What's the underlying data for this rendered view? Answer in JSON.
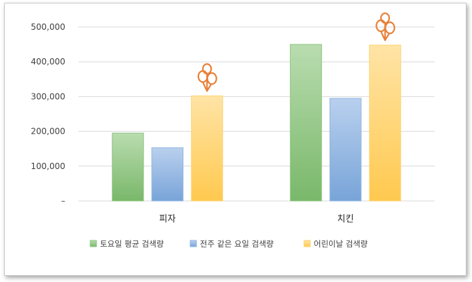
{
  "chart_data": {
    "type": "bar",
    "categories": [
      "피자",
      "치킨"
    ],
    "series": [
      {
        "name": "토요일 평균 검색량",
        "values": [
          195000,
          450000
        ],
        "color": "#8cc47f"
      },
      {
        "name": "전주 같은 요일 검색량",
        "values": [
          153000,
          295000
        ],
        "color": "#8fb5e1"
      },
      {
        "name": "어린이날 검색량",
        "values": [
          302000,
          448000
        ],
        "color": "#ffd36e"
      }
    ],
    "ylim": [
      0,
      500000
    ],
    "y_ticks": [
      "–",
      "100,000",
      "200,000",
      "300,000",
      "400,000",
      "500,000"
    ],
    "grid": true,
    "legend_position": "bottom",
    "annotations": [
      {
        "type": "balloon-icon",
        "category": "피자",
        "series": "어린이날 검색량",
        "color": "#e8813a"
      },
      {
        "type": "balloon-icon",
        "category": "치킨",
        "series": "어린이날 검색량",
        "color": "#e8813a"
      }
    ]
  }
}
